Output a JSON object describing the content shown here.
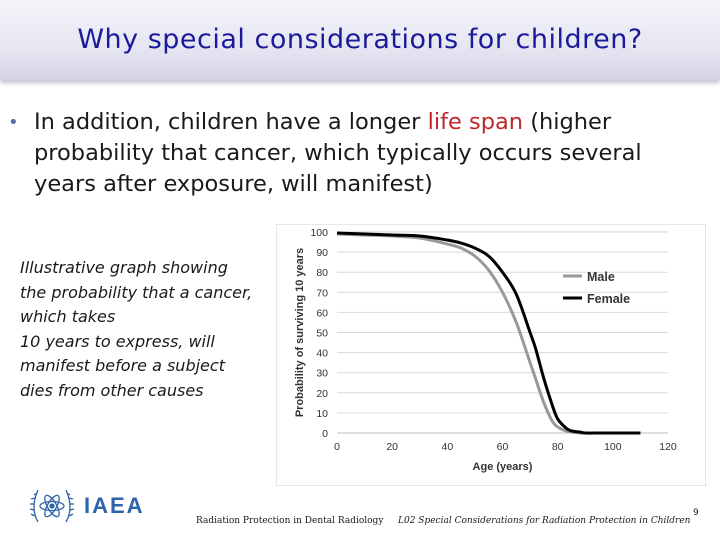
{
  "slide": {
    "title": "Why special considerations for children?",
    "bullet": {
      "marker": "•",
      "before": "In addition, children have a longer ",
      "highlight": "life span",
      "after": " (higher probability that cancer, which typically occurs several years after exposure, will manifest)"
    },
    "caption_lines": [
      "Illustrative graph showing",
      "the probability that a cancer,",
      "which takes",
      "10 years to express, will",
      "manifest before a subject",
      "dies from other causes"
    ],
    "logo_text": "IAEA",
    "footer_left": "Radiation Protection in Dental Radiology",
    "footer_right": "L02 Special Considerations for Radiation Protection in Children",
    "page_number": "9"
  },
  "colors": {
    "title": "#1a1a9a",
    "highlight": "#c0282c",
    "male_line": "#999999",
    "female_line": "#000000",
    "logo_blue": "#2d63a8"
  },
  "chart_data": {
    "type": "line",
    "xlabel": "Age (years)",
    "ylabel": "Probability of surviving 10 years",
    "xlim": [
      0,
      120
    ],
    "ylim": [
      0,
      100
    ],
    "xticks": [
      0,
      20,
      40,
      60,
      80,
      100,
      120
    ],
    "yticks": [
      0,
      10,
      20,
      30,
      40,
      50,
      60,
      70,
      80,
      90,
      100
    ],
    "grid": true,
    "legend_position": "right",
    "x": [
      0,
      10,
      20,
      30,
      40,
      45,
      50,
      55,
      60,
      65,
      70,
      72,
      75,
      78,
      80,
      83,
      85,
      88,
      90,
      95,
      100,
      105,
      110
    ],
    "series": [
      {
        "name": "Male",
        "color": "#999999",
        "values": [
          99,
          98.5,
          98,
          97,
          94,
          92,
          88,
          81,
          70,
          55,
          35,
          27,
          15,
          6,
          3,
          1,
          0.5,
          0,
          0,
          0,
          0,
          0,
          0
        ]
      },
      {
        "name": "Female",
        "color": "#000000",
        "values": [
          99.5,
          99,
          98.5,
          98,
          96,
          94.5,
          92,
          88,
          80,
          69,
          50,
          42,
          27,
          14,
          7,
          2.5,
          1,
          0.5,
          0,
          0,
          0,
          0,
          0
        ]
      }
    ]
  }
}
